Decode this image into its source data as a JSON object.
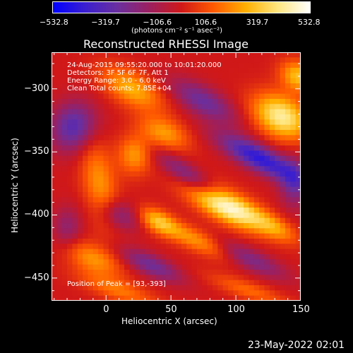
{
  "chart_data": {
    "type": "heatmap",
    "title": "Reconstructed RHESSI Image",
    "xlabel": "Heliocentric X (arcsec)",
    "ylabel": "Heliocentric Y (arcsec)",
    "xlim": [
      -42,
      150
    ],
    "ylim": [
      -468,
      -271
    ],
    "x_ticks": [
      0,
      50,
      100,
      150
    ],
    "x_tick_labels": [
      "0",
      "50",
      "100",
      "150"
    ],
    "y_ticks": [
      -300,
      -350,
      -400,
      -450
    ],
    "y_tick_labels": [
      "−300",
      "−350",
      "−400",
      "−450"
    ],
    "colorbar": {
      "min": -532.8,
      "max": 532.8,
      "tick_labels": [
        "−532.8",
        "−319.7",
        "−106.6",
        "106.6",
        "319.7",
        "532.8"
      ],
      "units": "(photons cm⁻² s⁻¹ asec⁻²)",
      "colormap": [
        "#0000ff",
        "#3a1fcf",
        "#6a2f9f",
        "#9b2060",
        "#d01818",
        "#ff5a00",
        "#ffb000",
        "#ffe680",
        "#ffffff"
      ]
    },
    "annotations": [
      "24-Aug-2015 09:55:20.000 to 10:01:20.000",
      "Detectors: 3F 5F 6F 7F, Att 1",
      "Energy Range: 3.0 - 6.0 keV",
      "Clean     Total counts: 7.85E+04"
    ],
    "peak_label": "Position of Peak = [93,-393]",
    "peak": [
      93,
      -393
    ],
    "features": [
      {
        "x": 93,
        "y": -393,
        "sx": 22,
        "sy": 8,
        "angle": -28,
        "amp": 532.8
      },
      {
        "x": 135,
        "y": -322,
        "sx": 16,
        "sy": 11,
        "angle": -30,
        "amp": 430
      },
      {
        "x": 148,
        "y": -290,
        "sx": 10,
        "sy": 8,
        "angle": -30,
        "amp": 300
      },
      {
        "x": 20,
        "y": -300,
        "sx": 18,
        "sy": 9,
        "angle": -30,
        "amp": 270
      },
      {
        "x": 45,
        "y": -335,
        "sx": 14,
        "sy": 8,
        "angle": -25,
        "amp": 230
      },
      {
        "x": -5,
        "y": -375,
        "sx": 9,
        "sy": 24,
        "angle": 10,
        "amp": 220
      },
      {
        "x": 22,
        "y": -352,
        "sx": 9,
        "sy": 11,
        "angle": 0,
        "amp": 230
      },
      {
        "x": 40,
        "y": -405,
        "sx": 11,
        "sy": 6,
        "angle": -30,
        "amp": 260
      },
      {
        "x": 70,
        "y": -420,
        "sx": 22,
        "sy": 6,
        "angle": -25,
        "amp": 240
      },
      {
        "x": 130,
        "y": -410,
        "sx": 14,
        "sy": 6,
        "angle": -30,
        "amp": 200
      },
      {
        "x": -10,
        "y": -435,
        "sx": 16,
        "sy": 8,
        "angle": -25,
        "amp": 220
      },
      {
        "x": 10,
        "y": -460,
        "sx": 22,
        "sy": 6,
        "angle": -20,
        "amp": 170
      },
      {
        "x": 110,
        "y": -460,
        "sx": 22,
        "sy": 5,
        "angle": -20,
        "amp": 150
      },
      {
        "x": 75,
        "y": -310,
        "sx": 20,
        "sy": 8,
        "angle": -30,
        "amp": -260
      },
      {
        "x": 118,
        "y": -355,
        "sx": 24,
        "sy": 7,
        "angle": -28,
        "amp": -430
      },
      {
        "x": -25,
        "y": -330,
        "sx": 12,
        "sy": 14,
        "angle": -20,
        "amp": -320
      },
      {
        "x": 65,
        "y": -370,
        "sx": 22,
        "sy": 6,
        "angle": -35,
        "amp": -240
      },
      {
        "x": 10,
        "y": -400,
        "sx": 12,
        "sy": 8,
        "angle": -25,
        "amp": -200
      },
      {
        "x": 35,
        "y": -440,
        "sx": 18,
        "sy": 6,
        "angle": -25,
        "amp": -250
      },
      {
        "x": 110,
        "y": -435,
        "sx": 22,
        "sy": 6,
        "angle": -25,
        "amp": -230
      },
      {
        "x": -30,
        "y": -410,
        "sx": 8,
        "sy": 12,
        "angle": 0,
        "amp": -160
      },
      {
        "x": 145,
        "y": -375,
        "sx": 8,
        "sy": 14,
        "angle": 0,
        "amp": -220
      }
    ]
  },
  "footer": {
    "date": "23-May-2022 02:01"
  }
}
